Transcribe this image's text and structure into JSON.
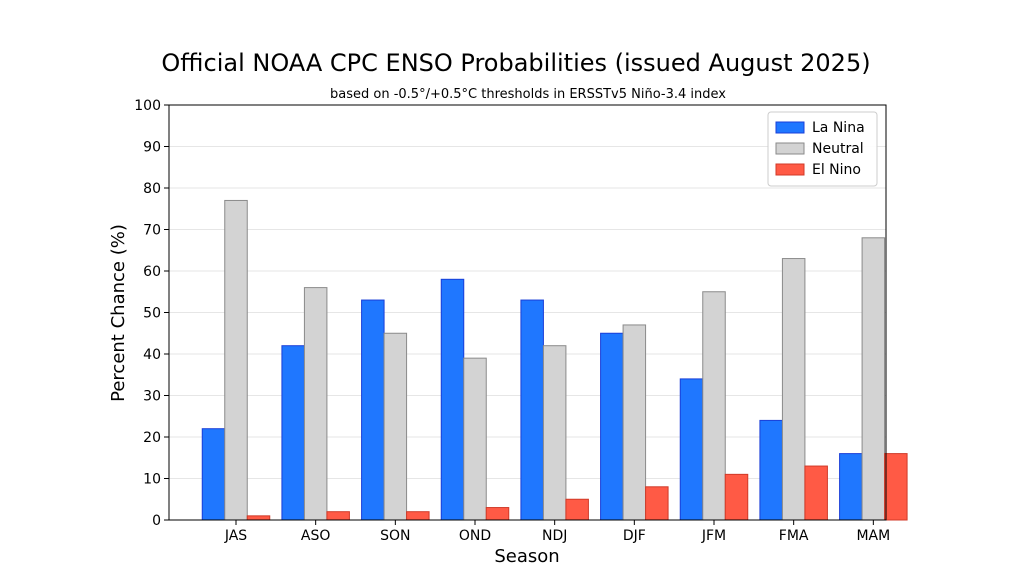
{
  "chart_data": {
    "type": "bar",
    "title": "Official NOAA CPC ENSO Probabilities (issued August 2025)",
    "subtitle": "based on -0.5°/+0.5°C thresholds in ERSSTv5 Niño-3.4 index",
    "xlabel": "Season",
    "ylabel": "Percent Chance (%)",
    "ylim": [
      0,
      100
    ],
    "yticks": [
      0,
      10,
      20,
      30,
      40,
      50,
      60,
      70,
      80,
      90,
      100
    ],
    "grid": true,
    "legend_position": "top-right",
    "categories": [
      "JAS",
      "ASO",
      "SON",
      "OND",
      "NDJ",
      "DJF",
      "JFM",
      "FMA",
      "MAM"
    ],
    "series": [
      {
        "name": "La Nina",
        "color": "#1f77ff",
        "edge": "#1a3fd8",
        "values": [
          22,
          42,
          53,
          58,
          53,
          45,
          34,
          24,
          16
        ]
      },
      {
        "name": "Neutral",
        "color": "#d3d3d3",
        "edge": "#8a8a8a",
        "values": [
          77,
          56,
          45,
          39,
          42,
          47,
          55,
          63,
          68
        ]
      },
      {
        "name": "El Nino",
        "color": "#ff5a45",
        "edge": "#d03a28",
        "values": [
          1,
          2,
          2,
          3,
          5,
          8,
          11,
          13,
          16
        ]
      }
    ]
  }
}
